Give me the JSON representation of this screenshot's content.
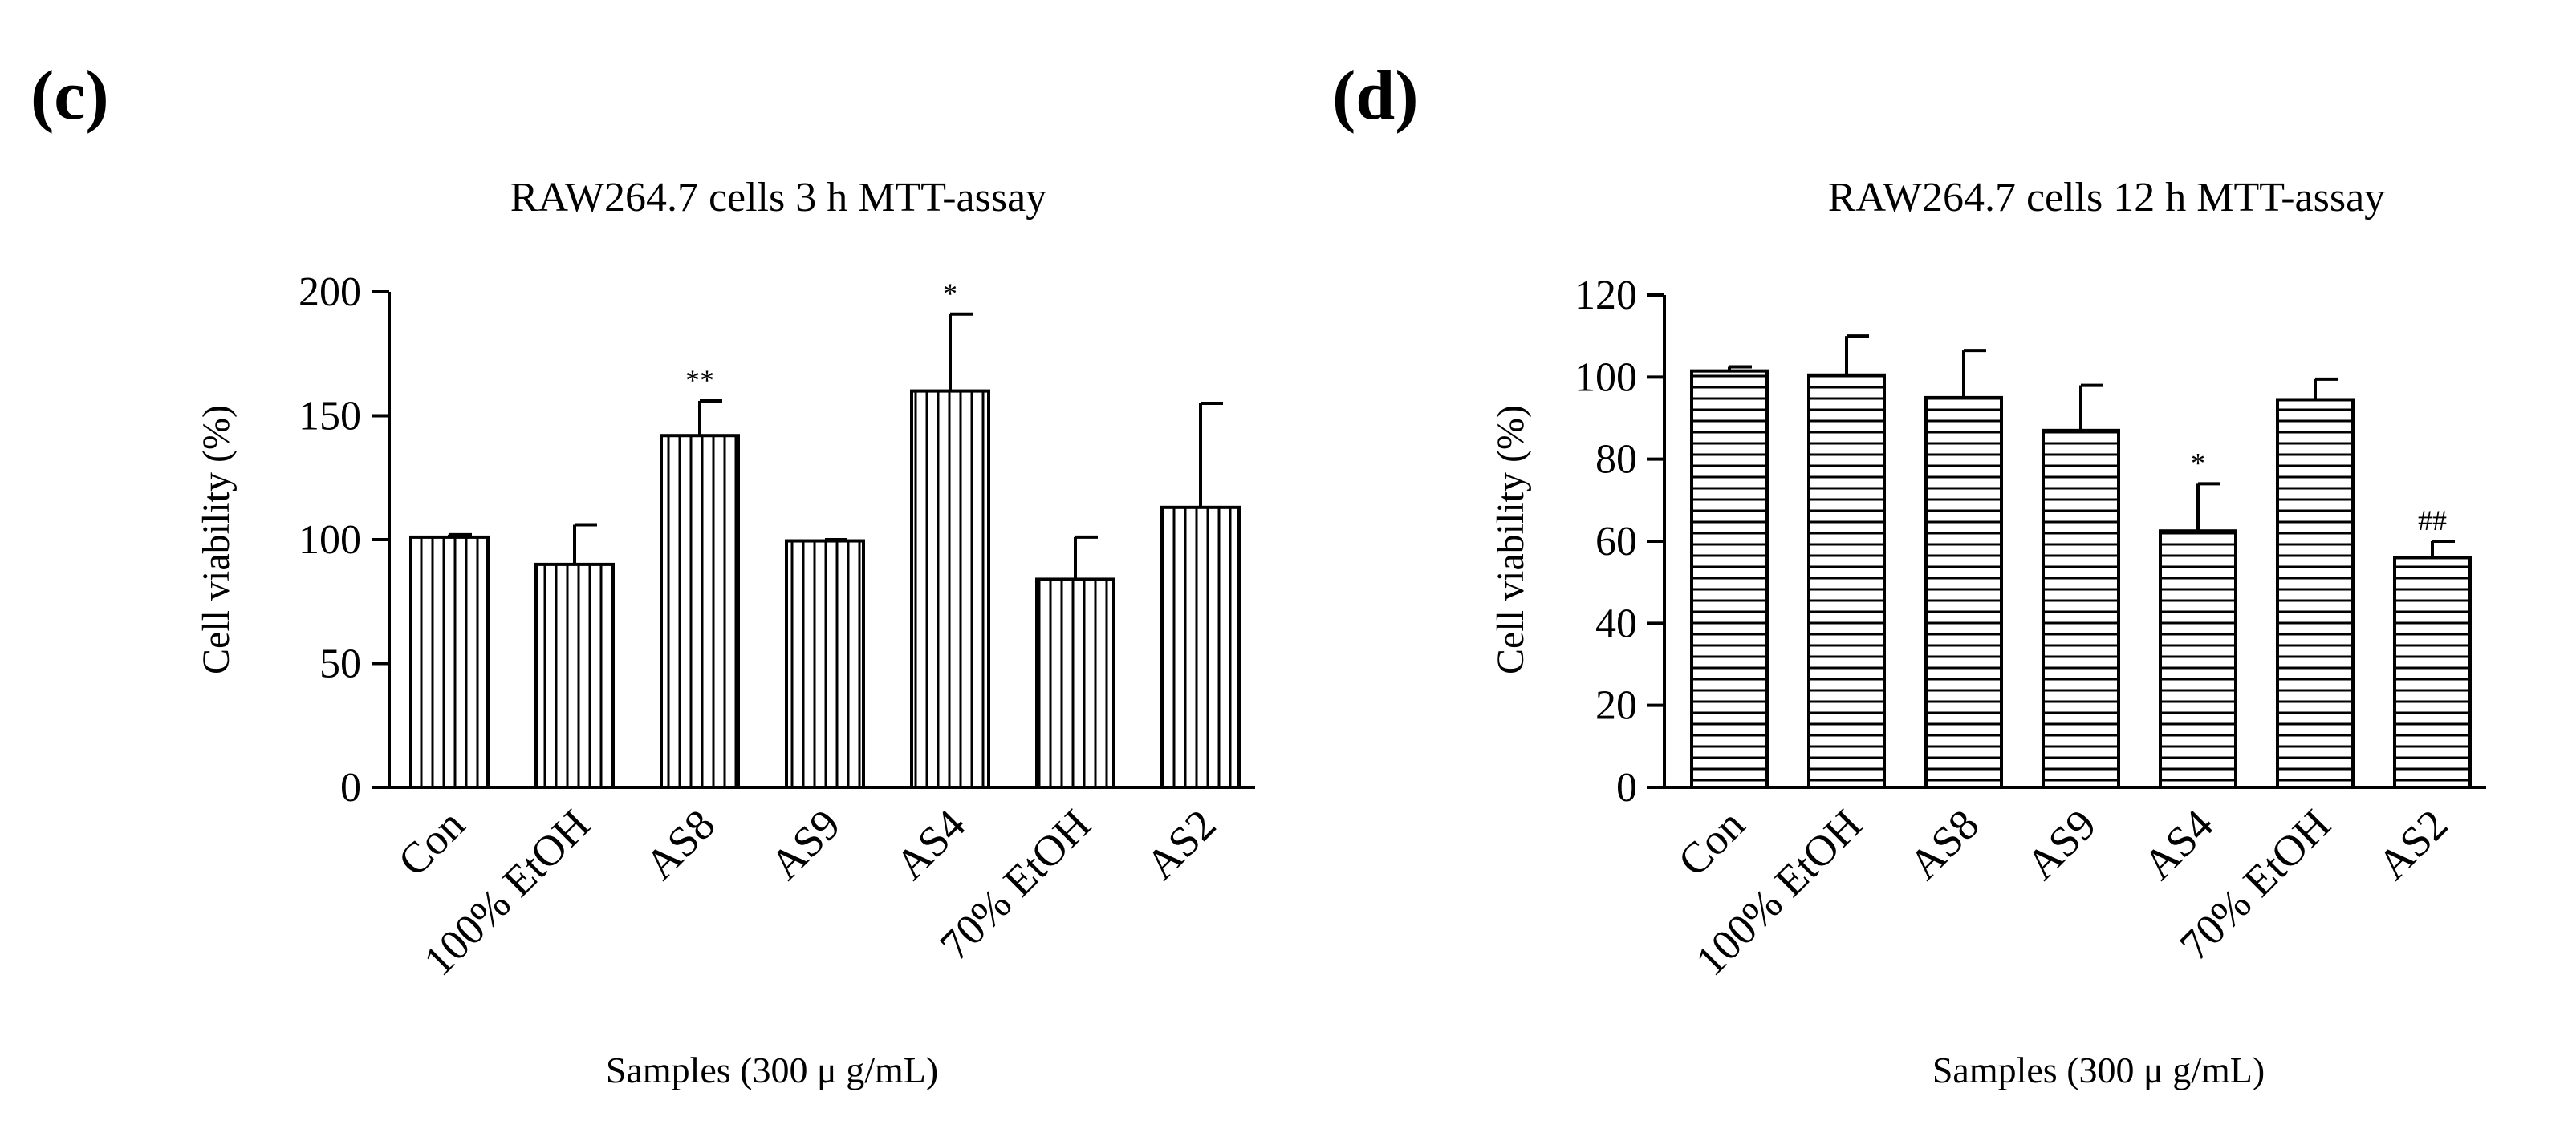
{
  "chart_data": [
    {
      "panel": "(c)",
      "type": "bar",
      "title": "RAW264.7 cells 3 h MTT-assay",
      "xlabel": "Samples (300 μ g/mL)",
      "ylabel": "Cell viability (%)",
      "ylim": [
        0,
        200
      ],
      "yticks": [
        0,
        50,
        100,
        150,
        200
      ],
      "pattern": "vertical",
      "categories": [
        "Con",
        "100% EtOH",
        "AS8",
        "AS9",
        "AS4",
        "70% EtOH",
        "AS2"
      ],
      "values": [
        101,
        90,
        142,
        99.5,
        160,
        84,
        113
      ],
      "errors": [
        1,
        16,
        14,
        0.5,
        31,
        17,
        42
      ],
      "annotations": [
        "",
        "",
        "**",
        "",
        "*",
        "",
        ""
      ]
    },
    {
      "panel": "(d)",
      "type": "bar",
      "title": "RAW264.7 cells 12 h MTT-assay",
      "xlabel": "Samples (300 μ g/mL)",
      "ylabel": "Cell viability (%)",
      "ylim": [
        0,
        120
      ],
      "yticks": [
        0,
        20,
        40,
        60,
        80,
        100,
        120
      ],
      "pattern": "horizontal",
      "categories": [
        "Con",
        "100% EtOH",
        "AS8",
        "AS9",
        "AS4",
        "70% EtOH",
        "AS2"
      ],
      "values": [
        101.5,
        100.5,
        95,
        87,
        62.5,
        94.5,
        56
      ],
      "errors": [
        1,
        9.5,
        11.5,
        11,
        11.5,
        5,
        4
      ],
      "annotations": [
        "",
        "",
        "",
        "",
        "*",
        "",
        "##"
      ]
    }
  ]
}
